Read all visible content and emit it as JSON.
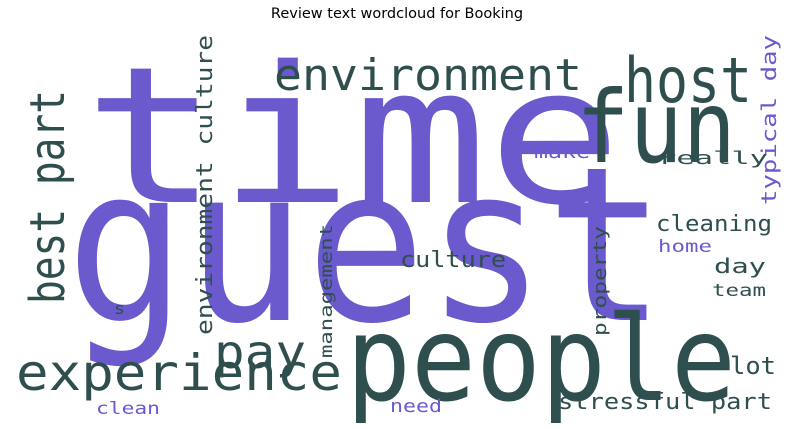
{
  "title": "Review text wordcloud for Booking",
  "colors": {
    "purple": "#6a5acd",
    "dark": "#2f4f4f"
  },
  "words": [
    {
      "text": "time",
      "color": "purple"
    },
    {
      "text": "guest",
      "color": "purple"
    },
    {
      "text": "people",
      "color": "dark"
    },
    {
      "text": "fun",
      "color": "dark"
    },
    {
      "text": "host",
      "color": "dark"
    },
    {
      "text": "environment",
      "color": "dark"
    },
    {
      "text": "best part",
      "color": "dark"
    },
    {
      "text": "experience",
      "color": "dark"
    },
    {
      "text": "pay",
      "color": "dark"
    },
    {
      "text": "environment culture",
      "color": "dark"
    },
    {
      "text": "typical day",
      "color": "purple"
    },
    {
      "text": "make",
      "color": "purple"
    },
    {
      "text": "really",
      "color": "dark"
    },
    {
      "text": "cleaning",
      "color": "dark"
    },
    {
      "text": "home",
      "color": "purple"
    },
    {
      "text": "day",
      "color": "dark"
    },
    {
      "text": "team",
      "color": "dark"
    },
    {
      "text": "culture",
      "color": "dark"
    },
    {
      "text": "property",
      "color": "dark"
    },
    {
      "text": "management",
      "color": "dark"
    },
    {
      "text": "lot",
      "color": "dark"
    },
    {
      "text": "stressful part",
      "color": "dark"
    },
    {
      "text": "need",
      "color": "purple"
    },
    {
      "text": "clean",
      "color": "purple"
    },
    {
      "text": "s",
      "color": "dark"
    }
  ]
}
